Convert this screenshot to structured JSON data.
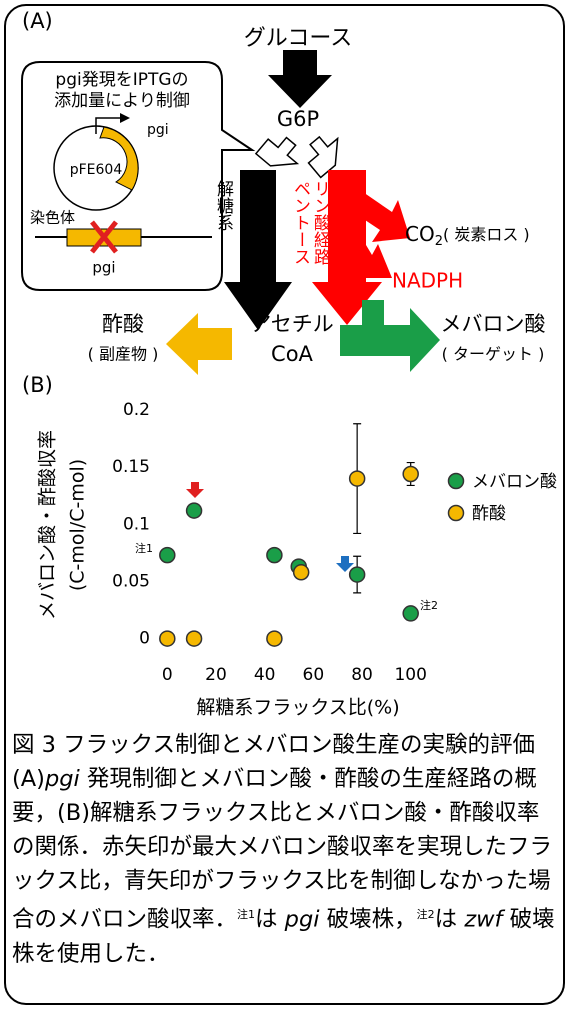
{
  "panel_a": {
    "label": "(A)",
    "glucose": "グルコース",
    "g6p": "G6P",
    "callout": [
      "pgi発現をIPTGの",
      "添加量により制御"
    ],
    "plasmid_gene": "pgi",
    "plasmid": "pFE604",
    "chromosome": "染色体",
    "chromosome_gene": "pgi",
    "glycolysis": "解糖系",
    "ppp": [
      "ペントース",
      "リン酸経路"
    ],
    "co2": [
      "CO",
      "2",
      "( 炭素ロス )"
    ],
    "nadph": "NADPH",
    "acetyl_coa": [
      "アセチル",
      "CoA"
    ],
    "acetate": [
      "酢酸",
      "( 副産物 )"
    ],
    "mevalonate": [
      "メバロン酸",
      "( ターゲット )"
    ]
  },
  "chart_data": {
    "type": "scatter",
    "panel_label": "(B)",
    "x_label": "解糖系フラックス比(%)",
    "y_label": [
      "メバロン酸・酢酸収率",
      "(C-mol/C-mol)"
    ],
    "series": [
      {
        "name": "メバロン酸",
        "color": "#1a9e48",
        "x": [
          0,
          11,
          44,
          54,
          78,
          100
        ],
        "values": [
          0.073,
          0.112,
          0.073,
          0.063,
          0.056,
          0.022
        ],
        "errors": [
          null,
          0.005,
          null,
          null,
          0.016,
          null
        ]
      },
      {
        "name": "酢酸",
        "color": "#f5b800",
        "x": [
          0,
          11,
          44,
          55,
          78,
          100
        ],
        "values": [
          0,
          0,
          0,
          0.058,
          0.14,
          0.144
        ],
        "errors": [
          null,
          null,
          null,
          null,
          0.048,
          0.01
        ]
      }
    ],
    "xlim": [
      -3,
      103
    ],
    "ylim": [
      -0.01,
      0.2
    ],
    "xticks": [
      0,
      20,
      40,
      60,
      80,
      100
    ],
    "yticks": [
      0,
      0.05,
      0.1,
      0.15,
      0.2
    ],
    "annotations": [
      "注1",
      "注2"
    ]
  },
  "caption": {
    "title": "図 3 フラックス制御とメバロン酸生産の実験的評価",
    "body": [
      "(A)",
      "pgi",
      " 発現制御とメバロン酸・酢酸の生産経路の概要，(B)解糖系フラックス比とメバロン酸・酢酸収率の関係．赤矢印が最大メバロン酸収率を実現したフラックス比，青矢印がフラックス比を制御しなかった場合のメバロン酸収率．",
      "注1",
      "は ",
      "pgi",
      " 破壊株，",
      "注2",
      "は ",
      "zwf",
      " 破壊株を使用した．"
    ]
  }
}
